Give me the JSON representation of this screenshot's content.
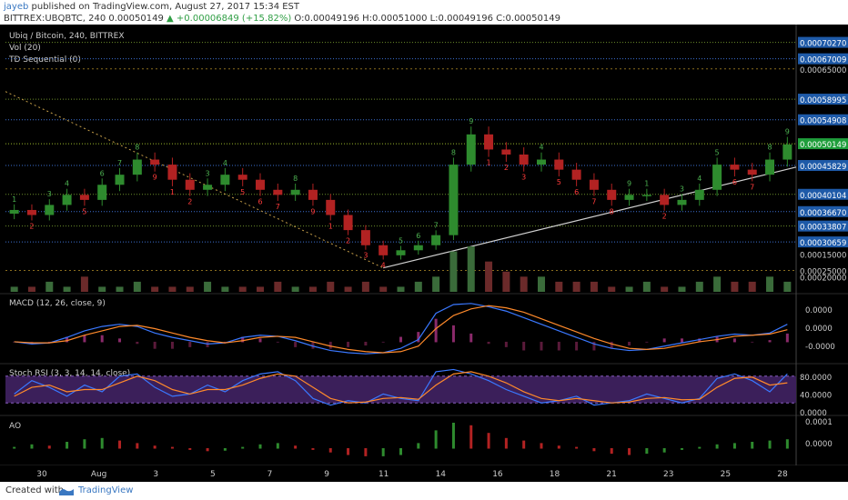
{
  "header": {
    "author": "jayeb",
    "published": "published on TradingView.com, August 27, 2017 15:34 EST",
    "symbol_line": "BITTREX:UBQBTC, 240",
    "last": "0.00050149",
    "change": "+0.00006849 (+15.82%)",
    "ohlc": "O:0.00049196 H:0.00051000 L:0.00049196 C:0.00050149"
  },
  "footer": {
    "created_with": "Created with",
    "brand": "TradingView"
  },
  "colors": {
    "background": "#000000",
    "up_candle": "#2e8b2e",
    "down_candle": "#b22222",
    "price_label_bg": "#1e5aa8",
    "current_price_bg": "#1f9e3b",
    "macd_line": "#3a78ff",
    "signal_line": "#ff8a2b",
    "stoch_k": "#3a78ff",
    "stoch_d": "#ff8a2b",
    "stoch_band": "#3b1f5a",
    "td_buy": "#ff3b3b",
    "td_sell": "#4caf50"
  },
  "chart_data": [
    {
      "type": "candlestick",
      "title": "Ubiq / Bitcoin, 240, BITTREX",
      "indicators": [
        "Vol (20)",
        "TD Sequential (0)"
      ],
      "ylim": [
        0.00024,
        0.00072
      ],
      "y_ticks": [
        "0.00025000",
        "0.00065000"
      ],
      "price_lines": [
        "0.00070270",
        "0.00067009",
        "0.00058995",
        "0.00054908",
        "0.00050149",
        "0.00045829",
        "0.00040104",
        "0.00036670",
        "0.00033807",
        "0.00030659"
      ],
      "current_price": "0.00050149",
      "x_labels": [
        "30",
        "Aug",
        "3",
        "5",
        "7",
        "9",
        "11",
        "14",
        "16",
        "18",
        "21",
        "23",
        "25",
        "28"
      ],
      "approx_closes": [
        0.00037,
        0.00036,
        0.00038,
        0.0004,
        0.00039,
        0.00042,
        0.00044,
        0.00047,
        0.00046,
        0.00043,
        0.00041,
        0.00042,
        0.00044,
        0.00043,
        0.00041,
        0.0004,
        0.00041,
        0.00039,
        0.00036,
        0.00033,
        0.0003,
        0.00028,
        0.00029,
        0.0003,
        0.00032,
        0.00046,
        0.00052,
        0.00049,
        0.00048,
        0.00046,
        0.00047,
        0.00045,
        0.00043,
        0.00041,
        0.00039,
        0.0004,
        0.0004,
        0.00038,
        0.00039,
        0.00041,
        0.00046,
        0.00045,
        0.00044,
        0.00047,
        0.0005
      ]
    },
    {
      "type": "bar",
      "title": "Vol (20)",
      "y_ticks": [
        "0.00020000",
        "0.00015000"
      ],
      "values": [
        1,
        1,
        2,
        1,
        3,
        1,
        1,
        2,
        1,
        1,
        1,
        2,
        1,
        1,
        1,
        2,
        1,
        1,
        2,
        1,
        2,
        1,
        1,
        2,
        3,
        8,
        9,
        6,
        4,
        3,
        3,
        2,
        2,
        2,
        1,
        1,
        2,
        1,
        1,
        2,
        3,
        2,
        2,
        3,
        2
      ]
    },
    {
      "type": "line",
      "title": "MACD (12, 26, close, 9)",
      "y_ticks": [
        "0.0000",
        "0.0000",
        "-0.0000"
      ],
      "series": [
        {
          "values": [
            0,
            -0.1,
            -0.05,
            0.2,
            0.5,
            0.7,
            0.8,
            0.7,
            0.4,
            0.2,
            0.05,
            -0.1,
            -0.05,
            0.2,
            0.3,
            0.25,
            0.05,
            -0.2,
            -0.4,
            -0.5,
            -0.55,
            -0.5,
            -0.3,
            0.1,
            1.3,
            1.7,
            1.75,
            1.6,
            1.4,
            1.1,
            0.8,
            0.5,
            0.2,
            -0.1,
            -0.3,
            -0.4,
            -0.35,
            -0.2,
            -0.05,
            0.1,
            0.25,
            0.35,
            0.3,
            0.4,
            0.8
          ]
        },
        {
          "values": [
            0,
            -0.05,
            -0.05,
            0.05,
            0.3,
            0.5,
            0.7,
            0.75,
            0.6,
            0.4,
            0.2,
            0.05,
            -0.05,
            0.05,
            0.2,
            0.25,
            0.2,
            0.0,
            -0.2,
            -0.35,
            -0.45,
            -0.5,
            -0.45,
            -0.2,
            0.6,
            1.2,
            1.5,
            1.65,
            1.55,
            1.35,
            1.05,
            0.75,
            0.45,
            0.15,
            -0.1,
            -0.3,
            -0.35,
            -0.3,
            -0.15,
            0.0,
            0.1,
            0.25,
            0.3,
            0.35,
            0.55
          ]
        }
      ]
    },
    {
      "type": "line",
      "title": "Stoch RSI (3, 3, 14, 14, close)",
      "y_ticks": [
        "80.0000",
        "40.0000",
        "0.0000"
      ],
      "ylim": [
        0,
        100
      ],
      "series": [
        {
          "values": [
            40,
            70,
            55,
            35,
            60,
            45,
            80,
            85,
            55,
            35,
            40,
            60,
            45,
            70,
            85,
            90,
            70,
            30,
            15,
            25,
            20,
            40,
            30,
            25,
            90,
            95,
            85,
            70,
            50,
            35,
            20,
            25,
            35,
            15,
            20,
            25,
            40,
            30,
            20,
            30,
            75,
            85,
            70,
            45,
            85
          ]
        },
        {
          "values": [
            35,
            55,
            60,
            45,
            50,
            50,
            65,
            80,
            70,
            50,
            40,
            50,
            50,
            60,
            75,
            85,
            80,
            55,
            30,
            20,
            22,
            30,
            32,
            28,
            60,
            85,
            90,
            80,
            65,
            45,
            30,
            25,
            30,
            25,
            20,
            22,
            30,
            32,
            27,
            28,
            55,
            75,
            78,
            60,
            65
          ]
        }
      ]
    },
    {
      "type": "bar",
      "title": "AO",
      "y_ticks": [
        "0.0001",
        "0.0000"
      ],
      "values": [
        0.05,
        0.15,
        0.1,
        0.25,
        0.35,
        0.4,
        0.3,
        0.2,
        0.1,
        0.05,
        -0.05,
        -0.1,
        -0.08,
        0.05,
        0.15,
        0.2,
        0.1,
        -0.05,
        -0.15,
        -0.25,
        -0.3,
        -0.3,
        -0.25,
        0.2,
        0.7,
        1.0,
        0.9,
        0.6,
        0.4,
        0.3,
        0.2,
        0.1,
        0.05,
        -0.1,
        -0.2,
        -0.25,
        -0.2,
        -0.15,
        -0.05,
        0.05,
        0.15,
        0.2,
        0.25,
        0.3,
        0.35
      ]
    }
  ]
}
